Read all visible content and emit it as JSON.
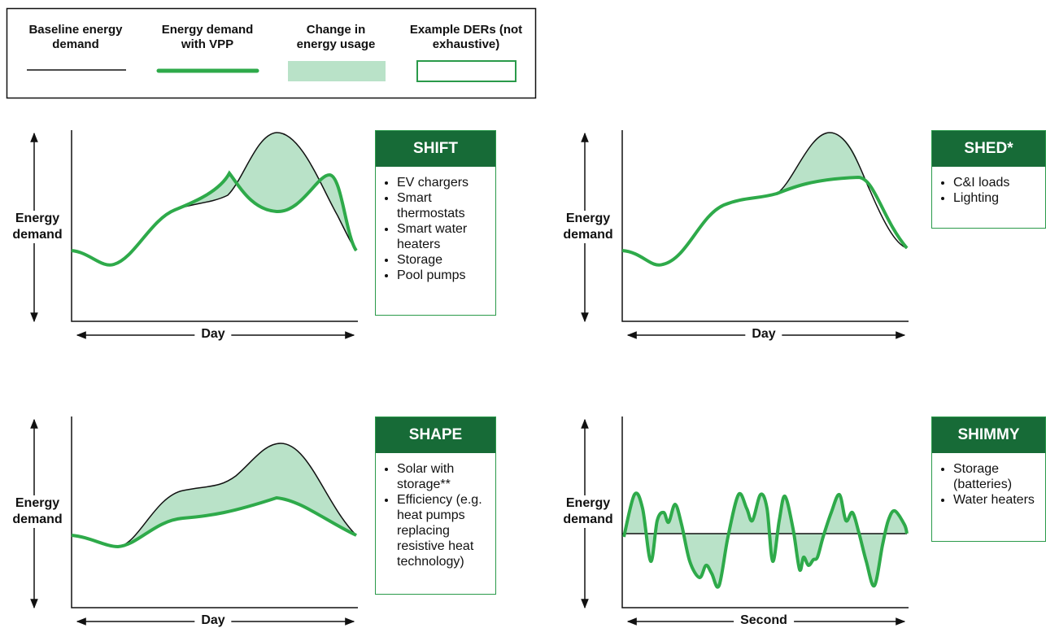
{
  "legend": {
    "items": [
      "Baseline energy demand",
      "Energy demand with VPP",
      "Change in energy usage",
      "Example DERs (not exhaustive)"
    ]
  },
  "panels": [
    {
      "title": "SHIFT",
      "items": [
        "EV chargers",
        "Smart thermostats",
        "Smart water heaters",
        "Storage",
        "Pool pumps"
      ],
      "y_label": "Energy demand",
      "x_label": "Day"
    },
    {
      "title": "SHED*",
      "items": [
        "C&I loads",
        "Lighting"
      ],
      "y_label": "Energy demand",
      "x_label": "Day"
    },
    {
      "title": "SHAPE",
      "items": [
        "Solar with storage**",
        "Efficiency (e.g. heat pumps replacing resistive heat technology)"
      ],
      "y_label": "Energy demand",
      "x_label": "Day"
    },
    {
      "title": "SHIMMY",
      "items": [
        "Storage (batteries)",
        "Water heaters"
      ],
      "y_label": "Energy demand",
      "x_label": "Second"
    }
  ]
}
